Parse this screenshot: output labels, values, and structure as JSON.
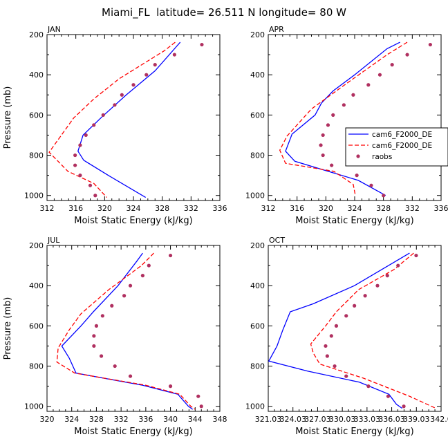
{
  "suptitle": "Miami_FL  latitude= 26.511 N longitude= 80 W",
  "legend": {
    "entries": [
      "cam6_F2000_DE",
      "cam6_F2000_DE",
      "raobs"
    ],
    "panel": "APR"
  },
  "colors": {
    "model1": "#0000ff",
    "model2": "#ff0000",
    "obs": "#b03060"
  },
  "chart_data": [
    {
      "type": "line",
      "title": "JAN",
      "xlabel": "Moist Static Energy (kJ/kg)",
      "ylabel": "Pressure (mb)",
      "xlim": [
        312,
        336
      ],
      "ylim": [
        1025,
        200
      ],
      "xticks": [
        312,
        316,
        320,
        324,
        328,
        332,
        336
      ],
      "xticklabels": [
        "312",
        "316",
        "320",
        "324",
        "328",
        "332",
        "336"
      ],
      "yticks": [
        200,
        400,
        600,
        800,
        1000
      ],
      "yticklabels": [
        "200",
        "400",
        "600",
        "800",
        "1000"
      ],
      "series": [
        {
          "name": "cam6_F2000_DE",
          "style": "solid",
          "color": "#0000ff",
          "points": [
            [
              330.5,
              238
            ],
            [
              327,
              380
            ],
            [
              323,
              500
            ],
            [
              319.6,
              610
            ],
            [
              317,
              700
            ],
            [
              316.3,
              780
            ],
            [
              317.1,
              825
            ],
            [
              320.5,
              900
            ],
            [
              325.7,
              1010
            ]
          ]
        },
        {
          "name": "cam6_F2000_DE",
          "style": "dashed",
          "color": "#ff0000",
          "points": [
            [
              329.8,
              238
            ],
            [
              328.3,
              280
            ],
            [
              322,
              420
            ],
            [
              318.5,
              520
            ],
            [
              315.7,
              615
            ],
            [
              312.3,
              785
            ],
            [
              314.9,
              880
            ],
            [
              318.5,
              940
            ],
            [
              320.3,
              1010
            ]
          ]
        },
        {
          "name": "raobs",
          "style": "points",
          "color": "#b03060",
          "points": [
            [
              333.5,
              250
            ],
            [
              329.7,
              300
            ],
            [
              327,
              350
            ],
            [
              325.8,
              400
            ],
            [
              324,
              450
            ],
            [
              322.4,
              500
            ],
            [
              321.4,
              550
            ],
            [
              319.8,
              600
            ],
            [
              318.5,
              650
            ],
            [
              317.4,
              700
            ],
            [
              316.6,
              750
            ],
            [
              315.9,
              800
            ],
            [
              315.9,
              850
            ],
            [
              316.6,
              900
            ],
            [
              318,
              950
            ],
            [
              318.7,
              1000
            ]
          ]
        }
      ]
    },
    {
      "type": "line",
      "title": "APR",
      "xlabel": "Moist Static Energy (kJ/kg)",
      "ylabel": "",
      "xlim": [
        312,
        336
      ],
      "ylim": [
        1025,
        200
      ],
      "xticks": [
        312,
        316,
        320,
        324,
        328,
        332,
        336
      ],
      "xticklabels": [
        "312",
        "316",
        "320",
        "324",
        "328",
        "332",
        "336"
      ],
      "yticks": [
        200,
        400,
        600,
        800,
        1000
      ],
      "yticklabels": [
        "200",
        "400",
        "600",
        "800",
        "1000"
      ],
      "series": [
        {
          "name": "cam6_F2000_DE",
          "style": "solid",
          "color": "#0000ff",
          "points": [
            [
              330.3,
              238
            ],
            [
              328.5,
              270
            ],
            [
              324,
              400
            ],
            [
              321,
              480
            ],
            [
              319.4,
              540
            ],
            [
              318.5,
              600
            ],
            [
              315.3,
              695
            ],
            [
              314.4,
              780
            ],
            [
              315.7,
              830
            ],
            [
              324.5,
              925
            ],
            [
              328.3,
              1000
            ]
          ]
        },
        {
          "name": "cam6_F2000_DE",
          "style": "dashed",
          "color": "#ff0000",
          "points": [
            [
              331.3,
              238
            ],
            [
              328.5,
              300
            ],
            [
              323,
              440
            ],
            [
              318,
              570
            ],
            [
              314.6,
              705
            ],
            [
              313.6,
              775
            ],
            [
              314.4,
              840
            ],
            [
              321.1,
              880
            ],
            [
              323.8,
              945
            ],
            [
              324.1,
              1000
            ]
          ]
        },
        {
          "name": "raobs",
          "style": "points",
          "color": "#b03060",
          "points": [
            [
              334.5,
              250
            ],
            [
              331.3,
              300
            ],
            [
              329.2,
              350
            ],
            [
              327.5,
              400
            ],
            [
              325.9,
              450
            ],
            [
              323.8,
              500
            ],
            [
              322.5,
              550
            ],
            [
              321,
              600
            ],
            [
              320.3,
              650
            ],
            [
              319.6,
              700
            ],
            [
              319.3,
              750
            ],
            [
              319.6,
              800
            ],
            [
              320.8,
              850
            ],
            [
              324.3,
              900
            ],
            [
              326.3,
              950
            ],
            [
              328,
              1000
            ]
          ]
        }
      ]
    },
    {
      "type": "line",
      "title": "JUL",
      "xlabel": "Moist Static Energy (kJ/kg)",
      "ylabel": "Pressure (mb)",
      "xlim": [
        320,
        348
      ],
      "ylim": [
        1025,
        200
      ],
      "xticks": [
        320,
        324,
        328,
        332,
        336,
        340,
        344,
        348
      ],
      "xticklabels": [
        "320",
        "324",
        "328",
        "332",
        "336",
        "340",
        "344",
        "348"
      ],
      "yticks": [
        200,
        400,
        600,
        800,
        1000
      ],
      "yticklabels": [
        "200",
        "400",
        "600",
        "800",
        "1000"
      ],
      "series": [
        {
          "name": "cam6_F2000_DE",
          "style": "solid",
          "color": "#0000ff",
          "points": [
            [
              335.5,
              238
            ],
            [
              334.5,
              280
            ],
            [
              331.5,
              400
            ],
            [
              327.5,
              530
            ],
            [
              325.5,
              600
            ],
            [
              322.4,
              700
            ],
            [
              323.6,
              760
            ],
            [
              324.7,
              835
            ],
            [
              335.5,
              895
            ],
            [
              341.2,
              940
            ],
            [
              342.9,
              1000
            ],
            [
              343.6,
              1015
            ]
          ]
        },
        {
          "name": "cam6_F2000_DE",
          "style": "dashed",
          "color": "#ff0000",
          "points": [
            [
              337.3,
              238
            ],
            [
              335.3,
              300
            ],
            [
              330,
              420
            ],
            [
              325.5,
              540
            ],
            [
              323.6,
              620
            ],
            [
              321.8,
              710
            ],
            [
              321.6,
              780
            ],
            [
              324.5,
              835
            ],
            [
              336,
              895
            ],
            [
              341.5,
              940
            ],
            [
              343.3,
              1000
            ],
            [
              344,
              1015
            ]
          ]
        },
        {
          "name": "raobs",
          "style": "points",
          "color": "#b03060",
          "points": [
            [
              340,
              250
            ],
            [
              336.5,
              300
            ],
            [
              335.5,
              350
            ],
            [
              333.5,
              400
            ],
            [
              332.5,
              450
            ],
            [
              330.5,
              500
            ],
            [
              329,
              550
            ],
            [
              328,
              600
            ],
            [
              327.6,
              650
            ],
            [
              327.6,
              700
            ],
            [
              328.8,
              750
            ],
            [
              331,
              800
            ],
            [
              333.5,
              850
            ],
            [
              340,
              900
            ],
            [
              344.5,
              950
            ],
            [
              345,
              1000
            ]
          ]
        }
      ]
    },
    {
      "type": "line",
      "title": "OCT",
      "xlabel": "Moist Static Energy (kJ/kg)",
      "ylabel": "",
      "xlim": [
        321.03,
        342.03
      ],
      "ylim": [
        1025,
        200
      ],
      "xticks": [
        321.03,
        324.03,
        327.03,
        330.03,
        333.03,
        336.03,
        339.03,
        342.03
      ],
      "xticklabels": [
        "321.03",
        "324.03",
        "327.03",
        "330.03",
        "333.03",
        "336.03",
        "339.03",
        "342.0"
      ],
      "yticks": [
        200,
        400,
        600,
        800,
        1000
      ],
      "yticklabels": [
        "200",
        "400",
        "600",
        "800",
        "1000"
      ],
      "series": [
        {
          "name": "cam6_F2000_DE",
          "style": "solid",
          "color": "#0000ff",
          "points": [
            [
              338.2,
              238
            ],
            [
              331.5,
              400
            ],
            [
              326.5,
              490
            ],
            [
              323.7,
              530
            ],
            [
              322.8,
              620
            ],
            [
              322.1,
              700
            ],
            [
              321.1,
              775
            ],
            [
              325.8,
              825
            ],
            [
              332.1,
              880
            ],
            [
              335.7,
              940
            ],
            [
              336.6,
              990
            ],
            [
              337.3,
              1010
            ]
          ]
        },
        {
          "name": "cam6_F2000_DE",
          "style": "dashed",
          "color": "#ff0000",
          "points": [
            [
              338.7,
              238
            ],
            [
              336.3,
              320
            ],
            [
              332,
              420
            ],
            [
              329.3,
              530
            ],
            [
              328,
              600
            ],
            [
              326.2,
              690
            ],
            [
              326.5,
              735
            ],
            [
              327.3,
              790
            ],
            [
              332.6,
              860
            ],
            [
              338.2,
              950
            ],
            [
              341.4,
              1010
            ]
          ]
        },
        {
          "name": "raobs",
          "style": "points",
          "color": "#b03060",
          "points": [
            [
              339,
              250
            ],
            [
              336.8,
              300
            ],
            [
              335.5,
              350
            ],
            [
              334.3,
              400
            ],
            [
              332.8,
              450
            ],
            [
              331.5,
              500
            ],
            [
              330.5,
              550
            ],
            [
              329.3,
              600
            ],
            [
              328.7,
              650
            ],
            [
              328,
              700
            ],
            [
              328.2,
              750
            ],
            [
              329.1,
              800
            ],
            [
              330.5,
              850
            ],
            [
              333.2,
              900
            ],
            [
              335.6,
              950
            ],
            [
              337.5,
              1000
            ]
          ]
        }
      ]
    }
  ]
}
